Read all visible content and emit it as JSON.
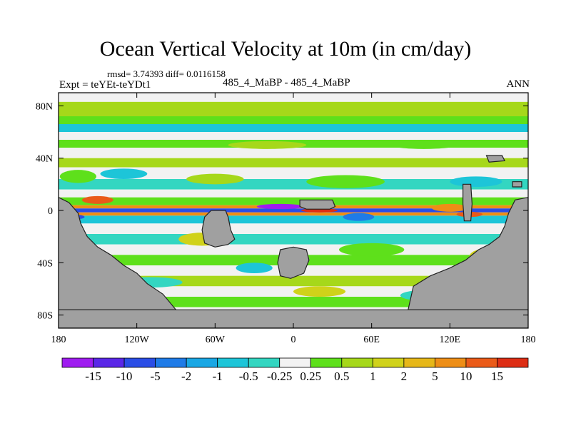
{
  "title": "Ocean Vertical Velocity at 10m (in cm/day)",
  "stats": "rmsd= 3.74393 diff= 0.0116158",
  "expt": "Expt = teYEt-teYDt1",
  "cases": "485_4_MaBP - 485_4_MaBP",
  "season": "ANN",
  "chart_data": {
    "type": "heatmap",
    "title": "Ocean Vertical Velocity at 10m (in cm/day)",
    "units": "cm/day",
    "xlim": [
      -180,
      180
    ],
    "ylim": [
      -90,
      90
    ],
    "xticks": [
      {
        "value": -180,
        "label": "180"
      },
      {
        "value": -120,
        "label": "120W"
      },
      {
        "value": -60,
        "label": "60W"
      },
      {
        "value": 0,
        "label": "0"
      },
      {
        "value": 60,
        "label": "60E"
      },
      {
        "value": 120,
        "label": "120E"
      },
      {
        "value": 180,
        "label": "180"
      }
    ],
    "yticks": [
      {
        "value": 80,
        "label": "80N"
      },
      {
        "value": 40,
        "label": "40N"
      },
      {
        "value": 0,
        "label": "0"
      },
      {
        "value": -40,
        "label": "40S"
      },
      {
        "value": -80,
        "label": "80S"
      }
    ],
    "colorbar": {
      "labels": [
        "-15",
        "-10",
        "-5",
        "-2",
        "-1",
        "-0.5",
        "-0.25",
        "0.25",
        "0.5",
        "1",
        "2",
        "5",
        "10",
        "15"
      ],
      "colors": [
        "#9f1cf0",
        "#5a27e8",
        "#2a4de6",
        "#1e7be8",
        "#19a7e4",
        "#1dc5d8",
        "#33d6c1",
        "#f2f2f2",
        "#5ee01b",
        "#a6d81a",
        "#d0d21a",
        "#e6b718",
        "#ee8e16",
        "#ea5a18",
        "#dd2d14"
      ]
    },
    "zonal_bands": [
      {
        "lat_from": 90,
        "lat_to": 83,
        "color": "#f2f2f2"
      },
      {
        "lat_from": 83,
        "lat_to": 72,
        "color": "#a6d81a"
      },
      {
        "lat_from": 72,
        "lat_to": 66,
        "color": "#5ee01b"
      },
      {
        "lat_from": 66,
        "lat_to": 60,
        "color": "#1dc5d8"
      },
      {
        "lat_from": 60,
        "lat_to": 54,
        "color": "#f2f2f2"
      },
      {
        "lat_from": 54,
        "lat_to": 48,
        "color": "#5ee01b"
      },
      {
        "lat_from": 48,
        "lat_to": 40,
        "color": "#f2f2f2"
      },
      {
        "lat_from": 40,
        "lat_to": 33,
        "color": "#a6d81a"
      },
      {
        "lat_from": 33,
        "lat_to": 24,
        "color": "#f2f2f2"
      },
      {
        "lat_from": 24,
        "lat_to": 16,
        "color": "#33d6c1"
      },
      {
        "lat_from": 16,
        "lat_to": 10,
        "color": "#f2f2f2"
      },
      {
        "lat_from": 10,
        "lat_to": 4,
        "color": "#5ee01b"
      },
      {
        "lat_from": 4,
        "lat_to": 1.5,
        "color": "#ee8e16"
      },
      {
        "lat_from": 1.5,
        "lat_to": -1.5,
        "color": "#2a4de6"
      },
      {
        "lat_from": -1.5,
        "lat_to": -4,
        "color": "#ee8e16"
      },
      {
        "lat_from": -4,
        "lat_to": -10,
        "color": "#1dc5d8"
      },
      {
        "lat_from": -10,
        "lat_to": -18,
        "color": "#f2f2f2"
      },
      {
        "lat_from": -18,
        "lat_to": -26,
        "color": "#33d6c1"
      },
      {
        "lat_from": -26,
        "lat_to": -34,
        "color": "#f2f2f2"
      },
      {
        "lat_from": -34,
        "lat_to": -42,
        "color": "#5ee01b"
      },
      {
        "lat_from": -42,
        "lat_to": -50,
        "color": "#f2f2f2"
      },
      {
        "lat_from": -50,
        "lat_to": -58,
        "color": "#a6d81a"
      },
      {
        "lat_from": -58,
        "lat_to": -66,
        "color": "#f2f2f2"
      },
      {
        "lat_from": -66,
        "lat_to": -74,
        "color": "#5ee01b"
      },
      {
        "lat_from": -74,
        "lat_to": -90,
        "color": "#f2f2f2"
      }
    ],
    "anomalies": [
      {
        "lon": -165,
        "lat": 26,
        "rlon": 14,
        "rlat": 5,
        "color": "#5ee01b"
      },
      {
        "lon": -130,
        "lat": 28,
        "rlon": 18,
        "rlat": 4,
        "color": "#1dc5d8"
      },
      {
        "lon": -60,
        "lat": 24,
        "rlon": 22,
        "rlat": 4,
        "color": "#a6d81a"
      },
      {
        "lon": 40,
        "lat": 22,
        "rlon": 30,
        "rlat": 5,
        "color": "#5ee01b"
      },
      {
        "lon": 140,
        "lat": 22,
        "rlon": 20,
        "rlat": 4,
        "color": "#1dc5d8"
      },
      {
        "lon": -20,
        "lat": 50,
        "rlon": 30,
        "rlat": 3,
        "color": "#a6d81a"
      },
      {
        "lon": 100,
        "lat": 50,
        "rlon": 25,
        "rlat": 3,
        "color": "#5ee01b"
      },
      {
        "lon": -70,
        "lat": -22,
        "rlon": 18,
        "rlat": 5,
        "color": "#d0d21a"
      },
      {
        "lon": 60,
        "lat": -30,
        "rlon": 25,
        "rlat": 5,
        "color": "#5ee01b"
      },
      {
        "lon": 150,
        "lat": -35,
        "rlon": 15,
        "rlat": 6,
        "color": "#d0d21a"
      },
      {
        "lon": -110,
        "lat": -55,
        "rlon": 25,
        "rlat": 4,
        "color": "#33d6c1"
      },
      {
        "lon": 20,
        "lat": -62,
        "rlon": 20,
        "rlat": 4,
        "color": "#d0d21a"
      },
      {
        "lon": -30,
        "lat": -44,
        "rlon": 14,
        "rlat": 4,
        "color": "#1dc5d8"
      },
      {
        "lon": 100,
        "lat": -65,
        "rlon": 18,
        "rlat": 4,
        "color": "#33d6c1"
      },
      {
        "lon": -150,
        "lat": 8,
        "rlon": 12,
        "rlat": 3,
        "color": "#ea5a18"
      },
      {
        "lon": -10,
        "lat": 3,
        "rlon": 18,
        "rlat": 2,
        "color": "#9f1cf0"
      },
      {
        "lon": 20,
        "lat": 0,
        "rlon": 14,
        "rlat": 1.5,
        "color": "#dd2d14"
      },
      {
        "lon": 120,
        "lat": 2,
        "rlon": 14,
        "rlat": 3,
        "color": "#ee8e16"
      },
      {
        "lon": 135,
        "lat": -3,
        "rlon": 10,
        "rlat": 2,
        "color": "#ea5a18"
      },
      {
        "lon": 50,
        "lat": -5,
        "rlon": 12,
        "rlat": 3,
        "color": "#1e7be8"
      },
      {
        "lon": -170,
        "lat": -5,
        "rlon": 10,
        "rlat": 2,
        "color": "#2a4de6"
      }
    ],
    "land_masses": [
      {
        "name": "continent-west",
        "points": [
          [
            -180,
            10
          ],
          [
            -172,
            6
          ],
          [
            -165,
            -2
          ],
          [
            -163,
            -10
          ],
          [
            -158,
            -20
          ],
          [
            -150,
            -28
          ],
          [
            -140,
            -34
          ],
          [
            -130,
            -42
          ],
          [
            -120,
            -48
          ],
          [
            -112,
            -56
          ],
          [
            -100,
            -64
          ],
          [
            -90,
            -76
          ],
          [
            -180,
            -76
          ]
        ]
      },
      {
        "name": "island-south-pacific",
        "points": [
          [
            -63,
            0
          ],
          [
            -52,
            0
          ],
          [
            -50,
            -5
          ],
          [
            -48,
            -15
          ],
          [
            -45,
            -22
          ],
          [
            -50,
            -26
          ],
          [
            -60,
            -28
          ],
          [
            -68,
            -25
          ],
          [
            -70,
            -15
          ],
          [
            -68,
            -5
          ]
        ]
      },
      {
        "name": "island-equatorial-atlantic",
        "points": [
          [
            5,
            8
          ],
          [
            30,
            8
          ],
          [
            32,
            3
          ],
          [
            28,
            1
          ],
          [
            10,
            1
          ],
          [
            5,
            3
          ]
        ]
      },
      {
        "name": "island-south-atlantic",
        "points": [
          [
            -10,
            -30
          ],
          [
            0,
            -28
          ],
          [
            10,
            -30
          ],
          [
            12,
            -38
          ],
          [
            8,
            -48
          ],
          [
            -2,
            -52
          ],
          [
            -10,
            -50
          ],
          [
            -12,
            -40
          ]
        ]
      },
      {
        "name": "continent-east",
        "points": [
          [
            180,
            10
          ],
          [
            170,
            8
          ],
          [
            165,
            -2
          ],
          [
            162,
            -12
          ],
          [
            158,
            -20
          ],
          [
            150,
            -26
          ],
          [
            142,
            -30
          ],
          [
            132,
            -38
          ],
          [
            120,
            -44
          ],
          [
            105,
            -50
          ],
          [
            92,
            -58
          ],
          [
            88,
            -76
          ],
          [
            180,
            -76
          ]
        ]
      },
      {
        "name": "island-east-tall",
        "points": [
          [
            130,
            20
          ],
          [
            136,
            20
          ],
          [
            137,
            5
          ],
          [
            136,
            -8
          ],
          [
            131,
            -8
          ],
          [
            130,
            5
          ]
        ]
      },
      {
        "name": "island-northeast",
        "points": [
          [
            148,
            42
          ],
          [
            160,
            42
          ],
          [
            162,
            38
          ],
          [
            150,
            37
          ]
        ]
      },
      {
        "name": "island-east-small",
        "points": [
          [
            168,
            22
          ],
          [
            175,
            22
          ],
          [
            175,
            18
          ],
          [
            168,
            18
          ]
        ]
      },
      {
        "name": "antarctic-shelf",
        "points": [
          [
            -180,
            -76
          ],
          [
            180,
            -76
          ],
          [
            180,
            -90
          ],
          [
            -180,
            -90
          ]
        ]
      }
    ]
  }
}
